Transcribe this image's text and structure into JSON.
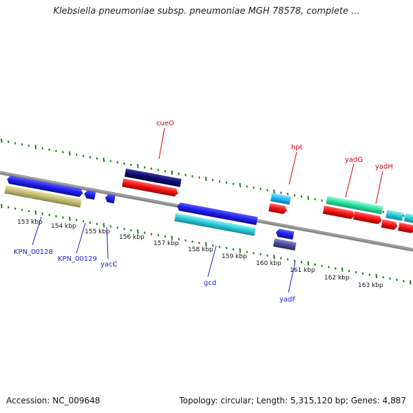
{
  "header": {
    "title": "Klebsiella pneumoniae subsp. pneumoniae MGH 78578, complete ..."
  },
  "footer": {
    "accession": "Accession: NC_009648",
    "info": "Topology: circular; Length: 5,315,120 bp; Genes: 4,887"
  },
  "ticks": [
    "153 kbp",
    "154 kbp",
    "155 kbp",
    "156 kbp",
    "157 kbp",
    "158 kbp",
    "159 kbp",
    "160 kbp",
    "161 kbp",
    "162 kbp",
    "163 kbp"
  ],
  "labels": {
    "cueO": "cueO",
    "hpt": "hpt",
    "yadG": "yadG",
    "yadH": "yadH",
    "KPN_00128": "KPN_00128",
    "KPN_00129": "KPN_00129",
    "yacC": "yacC",
    "gcd": "gcd",
    "yadF": "yadF"
  },
  "colors": {
    "blue": "#1f1fe8",
    "navy": "#0b0b6e",
    "red": "#ee1111",
    "cyan": "#26c9d6",
    "sky": "#1ab4ee",
    "green": "#28e0a0",
    "olive": "#c0bb70",
    "slate": "#4a4a9a",
    "backbone": "#888888",
    "dots": "#1a7a1a",
    "label_red": "#cc0000",
    "label_blue": "#1a1acc"
  }
}
